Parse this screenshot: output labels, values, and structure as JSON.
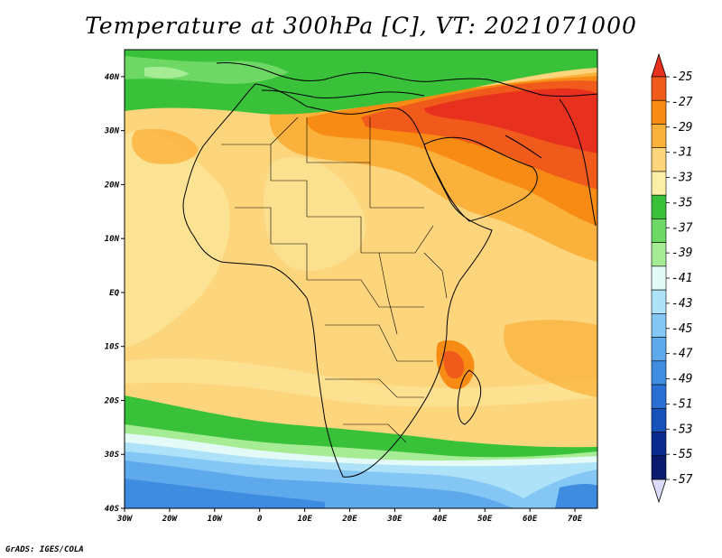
{
  "title": "Temperature at 300hPa [C], VT: 2021071000",
  "footer": "GrADS: IGES/COLA",
  "map": {
    "lon_range": [
      -30,
      75
    ],
    "lat_range": [
      -40,
      45
    ],
    "lat_ticks": [
      {
        "value": 40,
        "label": "40N"
      },
      {
        "value": 30,
        "label": "30N"
      },
      {
        "value": 20,
        "label": "20N"
      },
      {
        "value": 10,
        "label": "10N"
      },
      {
        "value": 0,
        "label": "EQ"
      },
      {
        "value": -10,
        "label": "10S"
      },
      {
        "value": -20,
        "label": "20S"
      },
      {
        "value": -30,
        "label": "30S"
      },
      {
        "value": -40,
        "label": "40S"
      }
    ],
    "lon_ticks": [
      {
        "value": -30,
        "label": "30W"
      },
      {
        "value": -20,
        "label": "20W"
      },
      {
        "value": -10,
        "label": "10W"
      },
      {
        "value": 0,
        "label": "0"
      },
      {
        "value": 10,
        "label": "10E"
      },
      {
        "value": 20,
        "label": "20E"
      },
      {
        "value": 30,
        "label": "30E"
      },
      {
        "value": 40,
        "label": "40E"
      },
      {
        "value": 50,
        "label": "50E"
      },
      {
        "value": 60,
        "label": "60E"
      },
      {
        "value": 70,
        "label": "70E"
      }
    ]
  },
  "colorbar": {
    "labels": [
      "-25",
      "-27",
      "-29",
      "-31",
      "-33",
      "-35",
      "-37",
      "-39",
      "-41",
      "-43",
      "-45",
      "-47",
      "-49",
      "-51",
      "-53",
      "-55",
      "-57"
    ],
    "colors": [
      "#e8301e",
      "#f05a1a",
      "#f78b14",
      "#fbb23c",
      "#fcd57c",
      "#fbeea6",
      "#39c13a",
      "#6ed864",
      "#a6ec94",
      "#e3faf6",
      "#aee2f8",
      "#84c6f4",
      "#5ea8ec",
      "#3f8ee2",
      "#2a70d4",
      "#1651b9",
      "#0a2a8f",
      "#0a1a6e",
      "#dcdcfa"
    ]
  },
  "fields": {
    "colors": {
      "ocean_cold_1": "#3e8ce0",
      "ocean_cold_2": "#5ea8ec",
      "ocean_cold_3": "#84c6f4",
      "ocean_cold_4": "#aee2f8",
      "ocean_cold_5": "#e3faf6",
      "band_green_dark": "#39c13a",
      "band_green": "#6ed864",
      "band_green_light": "#a6ec94",
      "base_yellow": "#fcd57c",
      "pale_yellow": "#fbeea6",
      "orange_light": "#fbb23c",
      "orange": "#f78b14",
      "orange_red": "#f05a1a",
      "red": "#e8301e"
    }
  }
}
